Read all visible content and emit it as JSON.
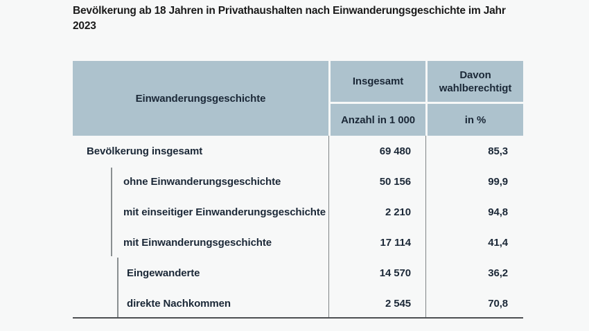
{
  "page": {
    "title_line1": "Bevölkerung ab 18 Jahren in Privathaushalten nach Einwanderungsgeschichte im Jahr",
    "title_line2": "2023"
  },
  "table": {
    "header": {
      "col1": "Einwanderungsgeschichte",
      "col2_top": "Insgesamt",
      "col2_unit": "Anzahl in 1 000",
      "col3_top": "Davon wahlberechtigt",
      "col3_unit": "in %"
    },
    "rows": [
      {
        "label": "Bevölkerung insgesamt",
        "level": 0,
        "anzahl": "69 480",
        "prozent": "85,3"
      },
      {
        "label": "ohne Einwanderungsgeschichte",
        "level": 1,
        "anzahl": "50 156",
        "prozent": "99,9"
      },
      {
        "label": "mit einseitiger Einwanderungsgeschichte",
        "level": 1,
        "anzahl": "2 210",
        "prozent": "94,8"
      },
      {
        "label": "mit Einwanderungsgeschichte",
        "level": 1,
        "anzahl": "17 114",
        "prozent": "41,4"
      },
      {
        "label": "Eingewanderte",
        "level": 2,
        "anzahl": "14 570",
        "prozent": "36,2"
      },
      {
        "label": "direkte Nachkommen",
        "level": 2,
        "anzahl": "2 545",
        "prozent": "70,8"
      }
    ]
  },
  "colors": {
    "page_background": "#f7f8f8",
    "header_background": "#adc2cd",
    "text": "#1b2837",
    "separator_gray": "#7f8486",
    "bottom_border": "#4c4f52"
  },
  "chart_data": {
    "type": "table",
    "title": "Bevölkerung ab 18 Jahren in Privathaushalten nach Einwanderungsgeschichte im Jahr 2023",
    "columns": [
      "Einwanderungsgeschichte",
      "Insgesamt – Anzahl in 1 000",
      "Davon wahlberechtigt – in %"
    ],
    "rows": [
      [
        "Bevölkerung insgesamt",
        69480,
        85.3
      ],
      [
        "ohne Einwanderungsgeschichte",
        50156,
        99.9
      ],
      [
        "mit einseitiger Einwanderungsgeschichte",
        2210,
        94.8
      ],
      [
        "mit Einwanderungsgeschichte",
        17114,
        41.4
      ],
      [
        "Eingewanderte",
        14570,
        36.2
      ],
      [
        "direkte Nachkommen",
        2545,
        70.8
      ]
    ],
    "hierarchy": {
      "Bevölkerung insgesamt": [
        "ohne Einwanderungsgeschichte",
        "mit einseitiger Einwanderungsgeschichte",
        "mit Einwanderungsgeschichte"
      ],
      "mit Einwanderungsgeschichte": [
        "Eingewanderte",
        "direkte Nachkommen"
      ]
    }
  }
}
